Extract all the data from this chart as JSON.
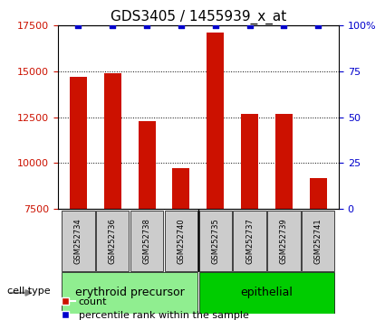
{
  "title": "GDS3405 / 1455939_x_at",
  "samples": [
    "GSM252734",
    "GSM252736",
    "GSM252738",
    "GSM252740",
    "GSM252735",
    "GSM252737",
    "GSM252739",
    "GSM252741"
  ],
  "counts": [
    14700,
    14900,
    12300,
    9700,
    17100,
    12700,
    12700,
    9200
  ],
  "percentiles": [
    100,
    100,
    100,
    100,
    100,
    100,
    100,
    100
  ],
  "groups": [
    {
      "label": "erythroid precursor",
      "indices": [
        0,
        1,
        2,
        3
      ],
      "color": "#90EE90"
    },
    {
      "label": "epithelial",
      "indices": [
        4,
        5,
        6,
        7
      ],
      "color": "#00CC00"
    }
  ],
  "ylim_left": [
    7500,
    17500
  ],
  "ylim_right": [
    0,
    100
  ],
  "yticks_left": [
    7500,
    10000,
    12500,
    15000,
    17500
  ],
  "yticks_right": [
    0,
    25,
    50,
    75,
    100
  ],
  "bar_color": "#CC1100",
  "dot_color": "#0000CC",
  "bar_width": 0.5,
  "legend_count_label": "count",
  "legend_pct_label": "percentile rank within the sample",
  "cell_type_label": "cell type",
  "bg_color": "#FFFFFF",
  "plot_bg_color": "#FFFFFF",
  "tick_label_color_left": "#CC1100",
  "tick_label_color_right": "#0000CC",
  "title_fontsize": 11,
  "axis_fontsize": 8,
  "legend_fontsize": 8,
  "group_label_fontsize": 9,
  "cell_type_fontsize": 8
}
